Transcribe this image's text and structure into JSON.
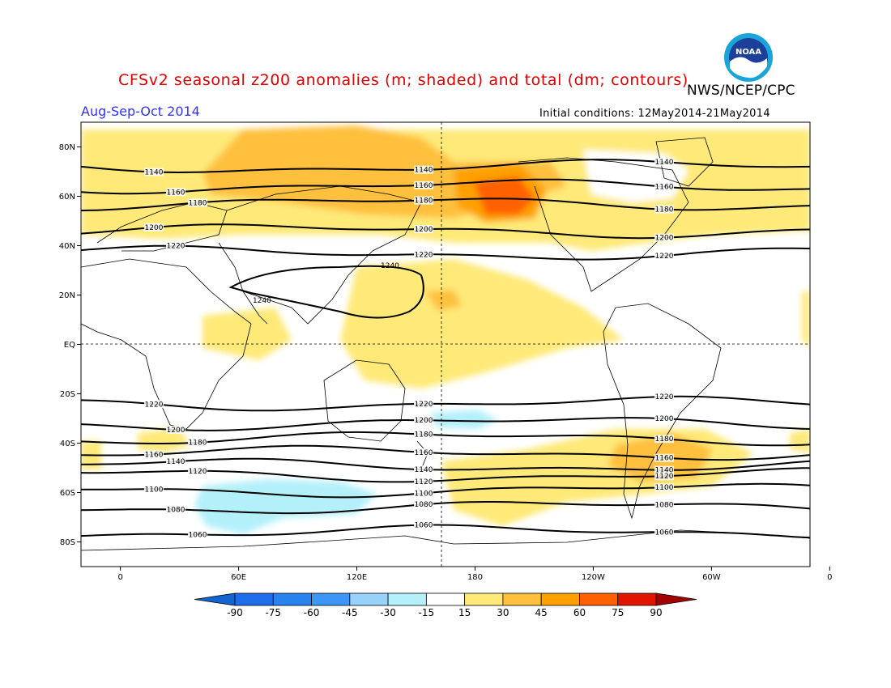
{
  "header": {
    "title": "CFSv2 seasonal z200 anomalies (m; shaded) and total (dm; contours)",
    "agency": "NWS/NCEP/CPC",
    "season": "Aug-Sep-Oct 2014",
    "initial_conditions": "Initial conditions: 12May2014-21May2014",
    "logo_text": "NOAA"
  },
  "colors": {
    "title": "#e00000",
    "season": "#3030ff",
    "text": "#000000"
  },
  "map": {
    "lat_labels": [
      "80N",
      "60N",
      "40N",
      "20N",
      "EQ",
      "20S",
      "40S",
      "60S",
      "80S"
    ],
    "lat_values": [
      80,
      60,
      40,
      20,
      0,
      -20,
      -40,
      -60,
      -80
    ],
    "lon_labels": [
      "0",
      "60E",
      "120E",
      "180",
      "120W",
      "60W",
      "0"
    ],
    "lon_values": [
      0,
      60,
      120,
      180,
      240,
      300,
      360
    ],
    "lon_range": [
      -20,
      350
    ],
    "lat_range": [
      -90,
      90
    ]
  },
  "contours": [
    {
      "label": "1140",
      "lat": 72
    },
    {
      "label": "1160",
      "lat": 64
    },
    {
      "label": "1180",
      "lat": 57
    },
    {
      "label": "1200",
      "lat": 46
    },
    {
      "label": "1220",
      "lat": 37
    },
    {
      "label": "1240",
      "lat": 24
    },
    {
      "label": "1220",
      "lat": -24
    },
    {
      "label": "1200",
      "lat": -32
    },
    {
      "label": "1180",
      "lat": -38
    },
    {
      "label": "1160",
      "lat": -44
    },
    {
      "label": "1140",
      "lat": -49
    },
    {
      "label": "1120",
      "lat": -53
    },
    {
      "label": "1100",
      "lat": -59
    },
    {
      "label": "1080",
      "lat": -66
    },
    {
      "label": "1060",
      "lat": -76
    }
  ],
  "colorbar": {
    "levels": [
      "-90",
      "-75",
      "-60",
      "-45",
      "-30",
      "-15",
      "15",
      "30",
      "45",
      "60",
      "75",
      "90"
    ],
    "colors": [
      "#1464d2",
      "#1e6eeb",
      "#2882f0",
      "#3c96f5",
      "#96d2fa",
      "#b4f0fa",
      "#ffffff",
      "#ffe978",
      "#ffc03c",
      "#ffa000",
      "#ff6000",
      "#e11400",
      "#a50000"
    ]
  }
}
